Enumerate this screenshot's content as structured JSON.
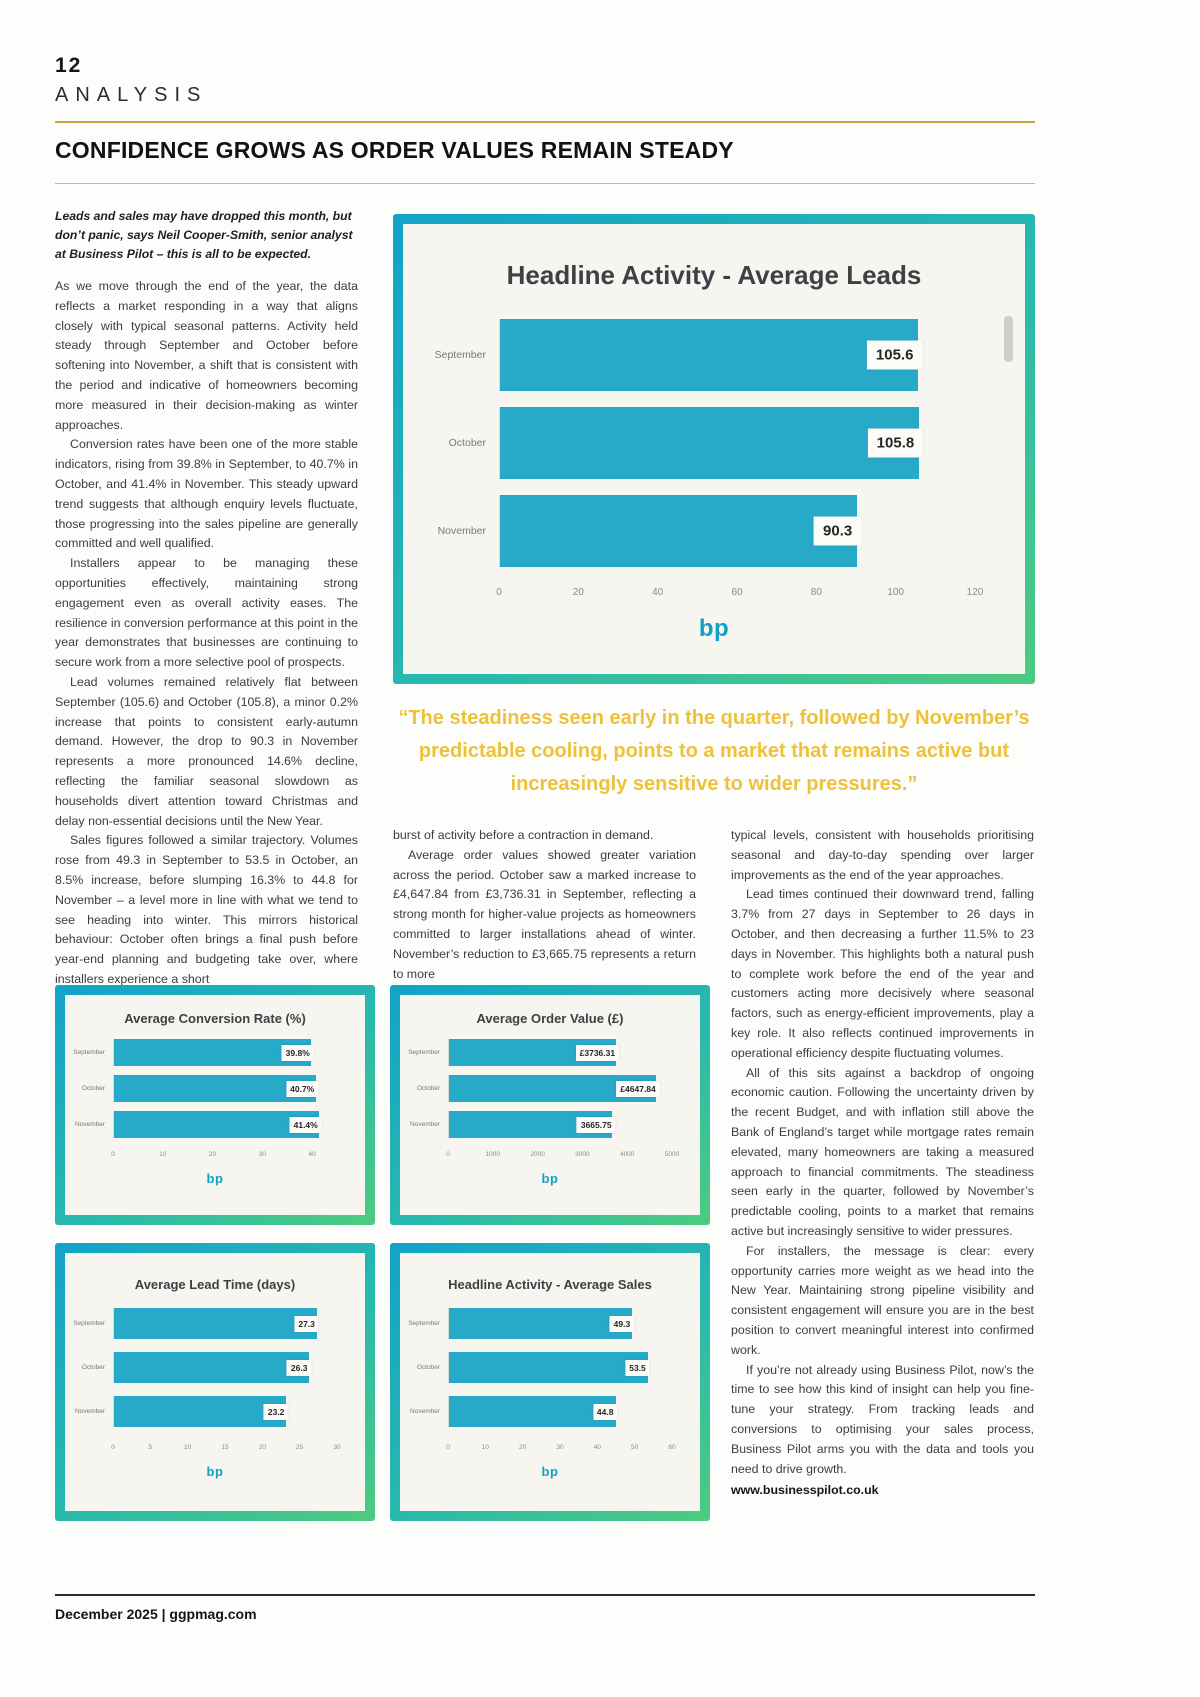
{
  "header": {
    "page_number": "12",
    "section": "ANALYSIS",
    "headline": "CONFIDENCE GROWS AS ORDER VALUES REMAIN STEADY"
  },
  "intro": "Leads and sales may have dropped this month, but don’t panic, says Neil Cooper-Smith, senior analyst at Business Pilot – this is all to be expected.",
  "columns": {
    "col1": [
      "As we move through the end of the year, the data reflects a market responding in a way that aligns closely with typical seasonal patterns. Activity held steady through September and October before softening into November, a shift that is consistent with the period and indicative of homeowners becoming more measured in their decision-making as winter approaches.",
      "Conversion rates have been one of the more stable indicators, rising from 39.8% in September, to 40.7% in October, and 41.4% in November. This steady upward trend suggests that although enquiry levels fluctuate, those progressing into the sales pipeline are generally committed and well qualified.",
      "Installers appear to be managing these opportunities effectively, maintaining strong engagement even as overall activity eases. The resilience in conversion performance at this point in the year demonstrates that businesses are continuing to secure work from a more selective pool of prospects.",
      "Lead volumes remained relatively flat between September (105.6) and October (105.8), a minor 0.2% increase that points to consistent early-autumn demand. However, the drop to 90.3 in November represents a more pronounced 14.6% decline, reflecting the familiar seasonal slowdown as households divert attention toward Christmas and delay non-essential decisions until the New Year.",
      "Sales figures followed a similar trajectory. Volumes rose from 49.3 in September to 53.5 in October, an 8.5% increase, before slumping 16.3% to 44.8 for November – a level more in line with what we tend to see heading into winter. This mirrors historical behaviour: October often brings a final push before year-end planning and budgeting take over, where installers experience a short"
    ],
    "col2": [
      "burst of activity before a contraction in demand.",
      "Average order values showed greater variation across the period. October saw a marked increase to £4,647.84 from £3,736.31 in September, reflecting a strong month for higher-value projects as homeowners committed to larger installations ahead of winter. November’s reduction to £3,665.75 represents a return to more"
    ],
    "col3": [
      "typical levels, consistent with households prioritising seasonal and day-to-day spending over larger improvements as the end of the year approaches.",
      "Lead times continued their downward trend, falling 3.7% from 27 days in September to 26 days in October, and then decreasing a further 11.5% to 23 days in November. This highlights both a natural push to complete work before the end of the year and customers acting more decisively where seasonal factors, such as energy-efficient improvements, play a key role. It also reflects continued improvements in operational efficiency despite fluctuating volumes.",
      "All of this sits against a backdrop of ongoing economic caution. Following the uncertainty driven by the recent Budget, and with inflation still above the Bank of England’s target while mortgage rates remain elevated, many homeowners are taking a measured approach to financial commitments. The steadiness seen early in the quarter, followed by November’s predictable cooling, points to a market that remains active but increasingly sensitive to wider pressures.",
      "For installers, the message is clear: every opportunity carries more weight as we head into the New Year. Maintaining strong pipeline visibility and consistent engagement will ensure you are in the best position to convert meaningful interest into confirmed work.",
      "If you’re not already using Business Pilot, now’s the time to see how this kind of insight can help you fine-tune your strategy. From tracking leads and conversions to optimising your sales process, Business Pilot arms you with the data and tools you need to drive growth."
    ]
  },
  "website": "www.businesspilot.co.uk",
  "pull_quote": "“The steadiness seen early in the quarter, followed by November’s predictable cooling, points to a market that remains active but increasingly sensitive to wider pressures.”",
  "logo": "bp",
  "footer": "December 2025  |  ggpmag.com",
  "colors": {
    "teal": "#27a9c8",
    "gold": "#edc23a",
    "green": "#4ecb7f"
  },
  "chart_data": [
    {
      "type": "bar",
      "orientation": "horizontal",
      "title": "Headline Activity - Average Leads",
      "categories": [
        "September",
        "October",
        "November"
      ],
      "values": [
        105.6,
        105.8,
        90.3
      ],
      "value_labels": [
        "105.6",
        "105.8",
        "90.3"
      ],
      "xmax": 120,
      "xticks": [
        0,
        20,
        40,
        60,
        80,
        100,
        120
      ],
      "xlabel": "",
      "ylabel": "",
      "grid": false,
      "legend": "none"
    },
    {
      "type": "bar",
      "orientation": "horizontal",
      "title": "Average Conversion Rate (%)",
      "categories": [
        "September",
        "October",
        "November"
      ],
      "values": [
        39.8,
        40.7,
        41.4
      ],
      "value_labels": [
        "39.8%",
        "40.7%",
        "41.4%"
      ],
      "xmax": 45,
      "xticks": [
        0,
        10,
        20,
        30,
        40
      ],
      "xlabel": "",
      "ylabel": "",
      "grid": false,
      "legend": "none"
    },
    {
      "type": "bar",
      "orientation": "horizontal",
      "title": "Average Order Value (£)",
      "categories": [
        "September",
        "October",
        "November"
      ],
      "values": [
        3736.31,
        4647.84,
        3665.75
      ],
      "value_labels": [
        "£3736.31",
        "£4647.84",
        "3665.75"
      ],
      "xmax": 5000,
      "xticks": [
        0,
        1000,
        2000,
        3000,
        4000,
        5000
      ],
      "xlabel": "",
      "ylabel": "",
      "grid": false,
      "legend": "none"
    },
    {
      "type": "bar",
      "orientation": "horizontal",
      "title": "Average Lead Time (days)",
      "categories": [
        "September",
        "October",
        "November"
      ],
      "values": [
        27.3,
        26.3,
        23.2
      ],
      "value_labels": [
        "27.3",
        "26.3",
        "23.2"
      ],
      "xmax": 30,
      "xticks": [
        0,
        5,
        10,
        15,
        20,
        25,
        30
      ],
      "xlabel": "",
      "ylabel": "",
      "grid": false,
      "legend": "none"
    },
    {
      "type": "bar",
      "orientation": "horizontal",
      "title": "Headline Activity - Average Sales",
      "categories": [
        "September",
        "October",
        "November"
      ],
      "values": [
        49.3,
        53.5,
        44.8
      ],
      "value_labels": [
        "49.3",
        "53.5",
        "44.8"
      ],
      "xmax": 60,
      "xticks": [
        0,
        10,
        20,
        30,
        40,
        50,
        60
      ],
      "xlabel": "",
      "ylabel": "",
      "grid": false,
      "legend": "none"
    }
  ]
}
